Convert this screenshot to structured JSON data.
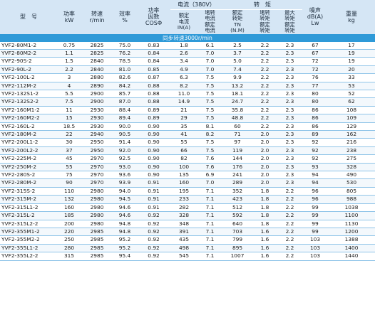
{
  "header": {
    "model": "型　号",
    "power": "功率\nkW",
    "speed": "转速\nr/min",
    "efficiency": "效率\n%",
    "power_factor": "功率\n因数\nCOSΦ",
    "current_group": "电流（380V）",
    "rated_current": "额定\n电流\nIN(A)",
    "locked_current": "堵转\n电流\n额定\n电流",
    "torque_group": "转　矩",
    "rated_torque": "额定\n转矩\nTN\n(N.M)",
    "locked_torque": "堵转\n转矩\n额定\n转矩",
    "max_torque": "最大\n转矩\n额定\n转矩",
    "noise": "噪声\ndB(A)\nLw",
    "weight": "重量\nkg"
  },
  "section": {
    "sync_speed": "同步转速3000r/min"
  },
  "rows": [
    [
      "YVF2-80M1-2",
      "0.75",
      "2825",
      "75.0",
      "0.83",
      "1.8",
      "6.1",
      "2.5",
      "2.2",
      "2.3",
      "67",
      "17"
    ],
    [
      "YVF2-80M2-2",
      "1.1",
      "2825",
      "76.2",
      "0.84",
      "2.6",
      "7.0",
      "3.7",
      "2.2",
      "2.3",
      "67",
      "19"
    ],
    [
      "YVF2-90S-2",
      "1.5",
      "2840",
      "78.5",
      "0.84",
      "3.4",
      "7.0",
      "5.0",
      "2.2",
      "2.3",
      "72",
      "19"
    ],
    [
      "YVF2-90L-2",
      "2.2",
      "2840",
      "81.0",
      "0.85",
      "4.9",
      "7.0",
      "7.4",
      "2.2",
      "2.3",
      "72",
      "20"
    ],
    [
      "YVF2-100L-2",
      "3",
      "2880",
      "82.6",
      "0.87",
      "6.3",
      "7.5",
      "9.9",
      "2.2",
      "2.3",
      "76",
      "33"
    ],
    [
      "YVF2-112M-2",
      "4",
      "2890",
      "84.2",
      "0.88",
      "8.2",
      "7.5",
      "13.2",
      "2.2",
      "2.3",
      "77",
      "53"
    ],
    [
      "YVF2-132S1-2",
      "5.5",
      "2900",
      "85.7",
      "0.88",
      "11.0",
      "7.5",
      "18.1",
      "2.2",
      "2.3",
      "80",
      "52"
    ],
    [
      "YVF2-132S2-2",
      "7.5",
      "2900",
      "87.0",
      "0.88",
      "14.9",
      "7.5",
      "24.7",
      "2.2",
      "2.3",
      "80",
      "62"
    ],
    [
      "YVF2-160M1-2",
      "11",
      "2930",
      "88.4",
      "0.89",
      "21",
      "7.5",
      "35.8",
      "2.2",
      "2.3",
      "86",
      "108"
    ],
    [
      "YVF2-160M2-2",
      "15",
      "2930",
      "89.4",
      "0.89",
      "29",
      "7.5",
      "48.8",
      "2.2",
      "2.3",
      "86",
      "109"
    ],
    [
      "YVF2-160L-2",
      "18.5",
      "2930",
      "90.0",
      "0.90",
      "35",
      "8.1",
      "60",
      "2.2",
      "2.3",
      "86",
      "129"
    ],
    [
      "YVF2-180M-2",
      "22",
      "2940",
      "90.5",
      "0.90",
      "41",
      "8.2",
      "71",
      "2.0",
      "2.3",
      "89",
      "162"
    ],
    [
      "YVF2-200L1-2",
      "30",
      "2950",
      "91.4",
      "0.90",
      "55",
      "7.5",
      "97",
      "2.0",
      "2.3",
      "92",
      "216"
    ],
    [
      "YVF2-200L2-2",
      "37",
      "2950",
      "92.0",
      "0.90",
      "66",
      "7.5",
      "119",
      "2.0",
      "2.3",
      "92",
      "238"
    ],
    [
      "YVF2-225M-2",
      "45",
      "2970",
      "92.5",
      "0.90",
      "82",
      "7.6",
      "144",
      "2.0",
      "2.3",
      "92",
      "275"
    ],
    [
      "YVF2-250M-2",
      "55",
      "2970",
      "93.0",
      "0.90",
      "100",
      "7.6",
      "176",
      "2.0",
      "2.3",
      "93",
      "328"
    ],
    [
      "YVF2-280S-2",
      "75",
      "2970",
      "93.6",
      "0.90",
      "135",
      "6.9",
      "241",
      "2.0",
      "2.3",
      "94",
      "490"
    ],
    [
      "YVF2-280M-2",
      "90",
      "2970",
      "93.9",
      "0.91",
      "160",
      "7.0",
      "289",
      "2.0",
      "2.3",
      "94",
      "530"
    ],
    [
      "YVF2-315S-2",
      "110",
      "2980",
      "94.0",
      "0.91",
      "195",
      "7.1",
      "352",
      "1.8",
      "2.2",
      "96",
      "805"
    ],
    [
      "YVF2-315M-2",
      "132",
      "2980",
      "94.5",
      "0.91",
      "233",
      "7.1",
      "423",
      "1.8",
      "2.2",
      "96",
      "988"
    ],
    [
      "YVF2-315L1-2",
      "160",
      "2980",
      "94.6",
      "0.91",
      "282",
      "7.1",
      "512",
      "1.8",
      "2.2",
      "99",
      "1038"
    ],
    [
      "YVF2-315L-2",
      "185",
      "2980",
      "94.6",
      "0.92",
      "328",
      "7.1",
      "592",
      "1.8",
      "2.2",
      "99",
      "1100"
    ],
    [
      "YVF2-315L2-2",
      "200",
      "2980",
      "94.8",
      "0.92",
      "348",
      "7.1",
      "640",
      "1.8",
      "2.2",
      "99",
      "1130"
    ],
    [
      "YVF2-355M1-2",
      "220",
      "2985",
      "94.8",
      "0.92",
      "391",
      "7.1",
      "703",
      "1.6",
      "2.2",
      "99",
      "1200"
    ],
    [
      "YVF2-355M2-2",
      "250",
      "2985",
      "95.2",
      "0.92",
      "435",
      "7.1",
      "799",
      "1.6",
      "2.2",
      "103",
      "1388"
    ],
    [
      "YVF2-355L1-2",
      "280",
      "2985",
      "95.2",
      "0.92",
      "498",
      "7.1",
      "895",
      "1.6",
      "2.2",
      "103",
      "1400"
    ],
    [
      "YVF2-355L2-2",
      "315",
      "2985",
      "95.4",
      "0.92",
      "545",
      "7.1",
      "1007",
      "1.6",
      "2.2",
      "103",
      "1440"
    ]
  ]
}
